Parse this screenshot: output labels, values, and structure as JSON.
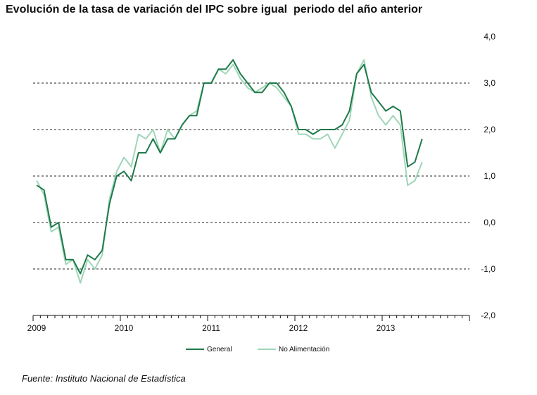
{
  "chart_data": {
    "type": "line",
    "title": "Evolución de la tasa de variación del IPC sobre igual  periodo del año anterior",
    "source": "Fuente: Instituto Nacional de Estadística",
    "xlabel": "",
    "ylabel": "",
    "ylim": [
      -2.0,
      4.0
    ],
    "yticks": [
      "4,0",
      "3,0",
      "2,0",
      "1,0",
      "0,0",
      "-1,0",
      "-2,0"
    ],
    "ytick_values": [
      4,
      3,
      2,
      1,
      0,
      -1,
      -2
    ],
    "xticks": [
      "2009",
      "2010",
      "2011",
      "2012",
      "2013"
    ],
    "xtick_index": [
      0,
      12,
      24,
      36,
      48
    ],
    "x_total_months": 60,
    "grid": "dashed horizontal lines at 1, 2, 3 and -1; solid line at 0",
    "legend_position": "bottom",
    "series": [
      {
        "name": "General",
        "color": "#1e7a4a",
        "values": [
          0.8,
          0.7,
          -0.1,
          0.0,
          -0.8,
          -0.8,
          -1.1,
          -0.7,
          -0.8,
          -0.6,
          0.4,
          1.0,
          1.1,
          0.9,
          1.5,
          1.5,
          1.8,
          1.5,
          1.8,
          1.8,
          2.1,
          2.3,
          2.3,
          3.0,
          3.0,
          3.3,
          3.3,
          3.5,
          3.2,
          3.0,
          2.8,
          2.8,
          3.0,
          3.0,
          2.8,
          2.5,
          2.0,
          2.0,
          1.9,
          2.0,
          2.0,
          2.0,
          2.1,
          2.4,
          3.2,
          3.4,
          2.8,
          2.6,
          2.4,
          2.5,
          2.4,
          1.2,
          1.3,
          1.8
        ]
      },
      {
        "name": "No Alimentación",
        "color": "#9fd6b8",
        "values": [
          0.9,
          0.6,
          -0.2,
          -0.1,
          -0.9,
          -0.8,
          -1.3,
          -0.8,
          -1.0,
          -0.7,
          0.5,
          1.1,
          1.4,
          1.2,
          1.9,
          1.8,
          2.0,
          1.5,
          2.0,
          1.8,
          2.1,
          2.3,
          2.4,
          3.0,
          3.0,
          3.3,
          3.2,
          3.4,
          3.1,
          2.9,
          2.8,
          2.9,
          3.0,
          2.9,
          2.7,
          2.5,
          1.9,
          1.9,
          1.8,
          1.8,
          1.9,
          1.6,
          1.9,
          2.2,
          3.2,
          3.5,
          2.7,
          2.3,
          2.1,
          2.3,
          2.1,
          0.8,
          0.9,
          1.3
        ]
      }
    ]
  }
}
